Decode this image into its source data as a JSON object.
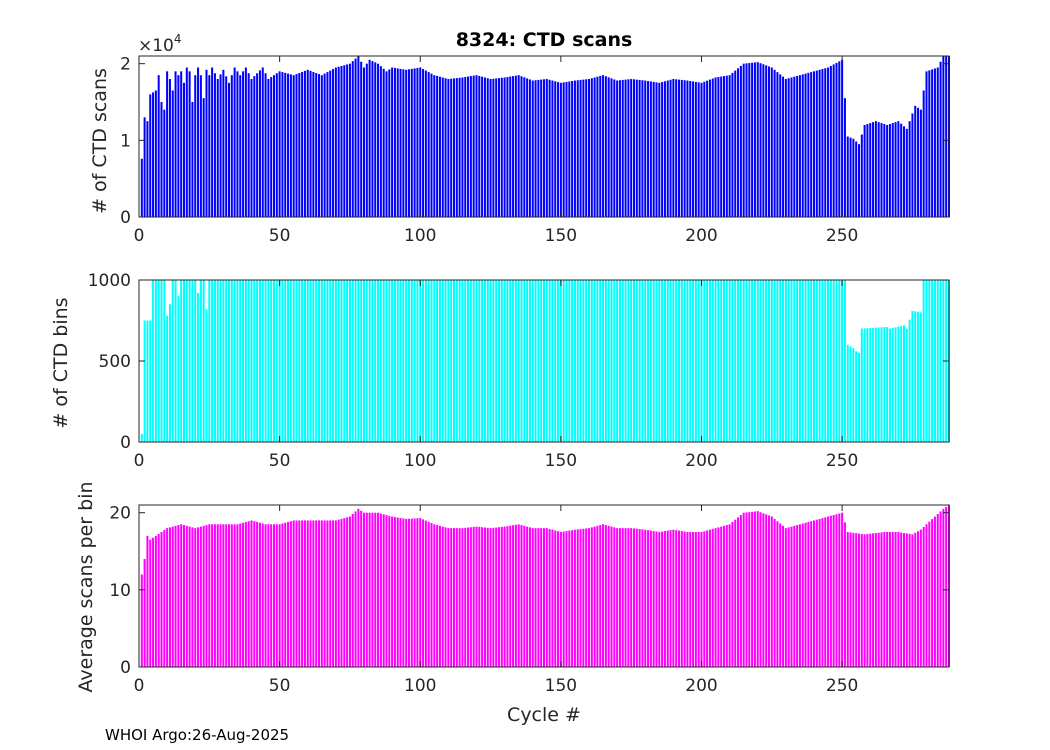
{
  "footer": "WHOI Argo:26-Aug-2025",
  "chart_data": [
    {
      "type": "bar",
      "title": "8324: CTD scans",
      "xlabel": "",
      "ylabel": "# of CTD scans",
      "exponent_label": "×10",
      "exponent_power": "4",
      "xlim": [
        0,
        288
      ],
      "ylim": [
        0,
        2.1
      ],
      "xticks": [
        "0",
        "50",
        "100",
        "150",
        "200",
        "250"
      ],
      "yticks": [
        "0",
        "1",
        "2"
      ],
      "ytick_values": [
        0,
        1,
        2
      ],
      "color": "#0000ff",
      "grid": false,
      "profile": [
        [
          1,
          0.76
        ],
        [
          2,
          1.3
        ],
        [
          3,
          1.25
        ],
        [
          4,
          1.6
        ],
        [
          6,
          1.65
        ],
        [
          7,
          1.85
        ],
        [
          8,
          1.5
        ],
        [
          9,
          1.4
        ],
        [
          10,
          1.9
        ],
        [
          11,
          1.8
        ],
        [
          12,
          1.65
        ],
        [
          13,
          1.9
        ],
        [
          14,
          1.85
        ],
        [
          15,
          1.9
        ],
        [
          16,
          1.75
        ],
        [
          17,
          1.95
        ],
        [
          18,
          1.9
        ],
        [
          19,
          1.5
        ],
        [
          20,
          1.85
        ],
        [
          21,
          1.95
        ],
        [
          22,
          1.85
        ],
        [
          23,
          1.55
        ],
        [
          24,
          1.92
        ],
        [
          25,
          1.85
        ],
        [
          26,
          1.95
        ],
        [
          28,
          1.8
        ],
        [
          30,
          1.92
        ],
        [
          32,
          1.75
        ],
        [
          34,
          1.95
        ],
        [
          36,
          1.85
        ],
        [
          38,
          1.95
        ],
        [
          40,
          1.8
        ],
        [
          44,
          1.95
        ],
        [
          46,
          1.8
        ],
        [
          50,
          1.9
        ],
        [
          55,
          1.85
        ],
        [
          60,
          1.92
        ],
        [
          65,
          1.85
        ],
        [
          70,
          1.95
        ],
        [
          75,
          2.0
        ],
        [
          78,
          2.1
        ],
        [
          80,
          1.95
        ],
        [
          82,
          2.05
        ],
        [
          85,
          2.0
        ],
        [
          88,
          1.9
        ],
        [
          90,
          1.95
        ],
        [
          95,
          1.92
        ],
        [
          100,
          1.95
        ],
        [
          105,
          1.85
        ],
        [
          110,
          1.8
        ],
        [
          115,
          1.82
        ],
        [
          120,
          1.85
        ],
        [
          125,
          1.8
        ],
        [
          130,
          1.82
        ],
        [
          135,
          1.85
        ],
        [
          140,
          1.78
        ],
        [
          145,
          1.8
        ],
        [
          150,
          1.75
        ],
        [
          155,
          1.78
        ],
        [
          160,
          1.8
        ],
        [
          165,
          1.85
        ],
        [
          170,
          1.78
        ],
        [
          175,
          1.8
        ],
        [
          180,
          1.78
        ],
        [
          185,
          1.75
        ],
        [
          190,
          1.8
        ],
        [
          195,
          1.78
        ],
        [
          200,
          1.75
        ],
        [
          205,
          1.82
        ],
        [
          210,
          1.85
        ],
        [
          215,
          2.0
        ],
        [
          220,
          2.02
        ],
        [
          225,
          1.95
        ],
        [
          230,
          1.8
        ],
        [
          235,
          1.85
        ],
        [
          240,
          1.9
        ],
        [
          245,
          1.95
        ],
        [
          250,
          2.05
        ],
        [
          252,
          1.05
        ],
        [
          254,
          1.02
        ],
        [
          256,
          0.95
        ],
        [
          258,
          1.2
        ],
        [
          262,
          1.25
        ],
        [
          266,
          1.2
        ],
        [
          270,
          1.25
        ],
        [
          273,
          1.15
        ],
        [
          276,
          1.45
        ],
        [
          278,
          1.4
        ],
        [
          280,
          1.9
        ],
        [
          284,
          1.95
        ],
        [
          286,
          2.1
        ],
        [
          288,
          2.1
        ]
      ]
    },
    {
      "type": "bar",
      "title": "",
      "xlabel": "",
      "ylabel": "# of CTD bins",
      "xlim": [
        0,
        288
      ],
      "ylim": [
        0,
        1000
      ],
      "xticks": [
        "0",
        "50",
        "100",
        "150",
        "200",
        "250"
      ],
      "yticks": [
        "0",
        "500",
        "1000"
      ],
      "ytick_values": [
        0,
        500,
        1000
      ],
      "color": "#00ffff",
      "grid": false,
      "profile": [
        [
          1,
          50
        ],
        [
          2,
          750
        ],
        [
          3,
          750
        ],
        [
          4,
          750
        ],
        [
          5,
          1000
        ],
        [
          9,
          1000
        ],
        [
          10,
          780
        ],
        [
          11,
          850
        ],
        [
          12,
          1000
        ],
        [
          13,
          1000
        ],
        [
          14,
          900
        ],
        [
          15,
          1000
        ],
        [
          20,
          1000
        ],
        [
          21,
          920
        ],
        [
          22,
          1000
        ],
        [
          23,
          1000
        ],
        [
          24,
          820
        ],
        [
          25,
          1000
        ],
        [
          251,
          1000
        ],
        [
          252,
          600
        ],
        [
          254,
          580
        ],
        [
          255,
          560
        ],
        [
          256,
          550
        ],
        [
          257,
          700
        ],
        [
          266,
          710
        ],
        [
          267,
          700
        ],
        [
          272,
          720
        ],
        [
          273,
          700
        ],
        [
          275,
          810
        ],
        [
          278,
          800
        ],
        [
          279,
          1000
        ],
        [
          288,
          1000
        ]
      ]
    },
    {
      "type": "bar",
      "title": "",
      "xlabel": "Cycle #",
      "ylabel": "Average scans per bin",
      "xlim": [
        0,
        288
      ],
      "ylim": [
        0,
        21
      ],
      "xticks": [
        "0",
        "50",
        "100",
        "150",
        "200",
        "250"
      ],
      "yticks": [
        "0",
        "10",
        "20"
      ],
      "ytick_values": [
        0,
        10,
        20
      ],
      "color": "#ff00ff",
      "grid": false,
      "profile": [
        [
          1,
          12
        ],
        [
          2,
          14
        ],
        [
          3,
          17
        ],
        [
          4,
          16.5
        ],
        [
          6,
          17
        ],
        [
          8,
          17.5
        ],
        [
          10,
          18
        ],
        [
          15,
          18.5
        ],
        [
          20,
          18
        ],
        [
          25,
          18.5
        ],
        [
          30,
          18.5
        ],
        [
          35,
          18.5
        ],
        [
          40,
          19
        ],
        [
          45,
          18.5
        ],
        [
          50,
          18.5
        ],
        [
          55,
          19
        ],
        [
          60,
          19
        ],
        [
          65,
          19
        ],
        [
          70,
          19
        ],
        [
          75,
          19.5
        ],
        [
          78,
          20.5
        ],
        [
          80,
          20
        ],
        [
          85,
          20
        ],
        [
          90,
          19.5
        ],
        [
          95,
          19.2
        ],
        [
          100,
          19.3
        ],
        [
          105,
          18.5
        ],
        [
          110,
          18
        ],
        [
          115,
          18
        ],
        [
          120,
          18.2
        ],
        [
          125,
          18
        ],
        [
          130,
          18.2
        ],
        [
          135,
          18.5
        ],
        [
          140,
          18
        ],
        [
          145,
          18
        ],
        [
          150,
          17.5
        ],
        [
          155,
          17.8
        ],
        [
          160,
          18
        ],
        [
          165,
          18.5
        ],
        [
          170,
          18
        ],
        [
          175,
          18
        ],
        [
          180,
          17.8
        ],
        [
          185,
          17.5
        ],
        [
          190,
          17.8
        ],
        [
          195,
          17.5
        ],
        [
          200,
          17.5
        ],
        [
          205,
          18
        ],
        [
          210,
          18.5
        ],
        [
          215,
          20
        ],
        [
          220,
          20.2
        ],
        [
          225,
          19.5
        ],
        [
          230,
          18
        ],
        [
          235,
          18.5
        ],
        [
          240,
          19
        ],
        [
          245,
          19.5
        ],
        [
          250,
          20
        ],
        [
          252,
          17.5
        ],
        [
          258,
          17.2
        ],
        [
          265,
          17.5
        ],
        [
          270,
          17.5
        ],
        [
          275,
          17.2
        ],
        [
          278,
          17.8
        ],
        [
          280,
          18.5
        ],
        [
          283,
          19.5
        ],
        [
          286,
          20.5
        ],
        [
          288,
          21
        ]
      ]
    }
  ]
}
